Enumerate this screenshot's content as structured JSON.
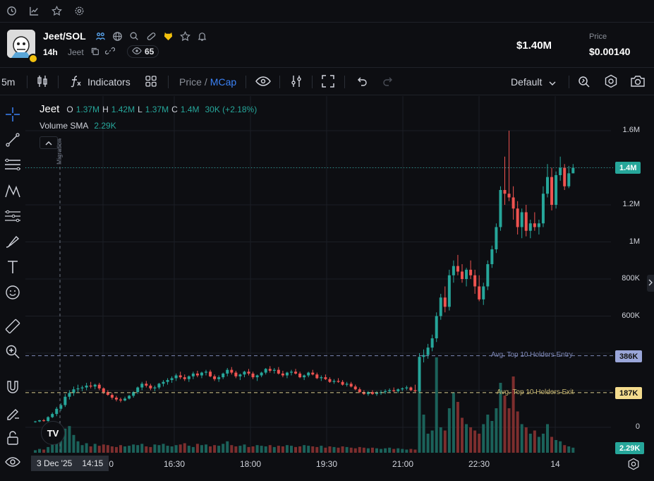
{
  "topnav": {
    "icons": [
      "history-icon",
      "chart-line-icon",
      "star-icon",
      "gear-icon"
    ]
  },
  "header": {
    "pair": "Jeet/SOL",
    "age": "14h",
    "symbol": "Jeet",
    "viewers": "65",
    "market_cap": "$1.40M",
    "price_label": "Price",
    "price_value": "$0.00140"
  },
  "toolbar": {
    "interval": "5m",
    "indicators_label": "Indicators",
    "price_label": "Price",
    "separator": "/",
    "mcap_label": "MCap",
    "layout_label": "Default"
  },
  "legend": {
    "name": "Jeet",
    "open_key": "O",
    "open": "1.37M",
    "high_key": "H",
    "high": "1.42M",
    "low_key": "L",
    "low": "1.37M",
    "close_key": "C",
    "close": "1.4M",
    "change": "30K (+2.18%)",
    "volume_label": "Volume SMA",
    "volume_value": "2.29K",
    "migration_label": "Migration"
  },
  "yaxis": {
    "ticks": [
      {
        "label": "1.6M",
        "value": 1600000
      },
      {
        "label": "1.2M",
        "value": 1200000
      },
      {
        "label": "1M",
        "value": 1000000
      },
      {
        "label": "800K",
        "value": 800000
      },
      {
        "label": "600K",
        "value": 600000
      },
      {
        "label": "0",
        "value": 0
      }
    ],
    "last_price_badge": "1.4M",
    "entry_badge": "386K",
    "exit_badge": "187K",
    "volume_badge": "2.29K"
  },
  "lines": {
    "entry_label": "Avg. Top 10 Holders Entry",
    "exit_label": "Avg. Top 10 Holders Exit"
  },
  "xaxis": {
    "cursor_date": "3 Dec '25",
    "cursor_time": "14:15",
    "ticks": [
      "15:00",
      "16:30",
      "18:00",
      "19:30",
      "21:00",
      "22:30",
      "14"
    ]
  },
  "colors": {
    "up": "#26a69a",
    "down": "#ef5350",
    "entry_line": "#7c86b5",
    "exit_line": "#d6c98a",
    "accent": "#2962ff"
  },
  "chart_data": {
    "type": "candlestick",
    "unit": "market cap (USD)",
    "x_start": "14:00",
    "interval_minutes": 5,
    "candles": [
      [
        30000,
        35000,
        25000,
        32000
      ],
      [
        32000,
        40000,
        28000,
        38000
      ],
      [
        38000,
        45000,
        30000,
        34000
      ],
      [
        34000,
        60000,
        30000,
        55000
      ],
      [
        55000,
        80000,
        50000,
        72000
      ],
      [
        72000,
        110000,
        60000,
        100000
      ],
      [
        100000,
        130000,
        90000,
        120000
      ],
      [
        120000,
        180000,
        110000,
        165000
      ],
      [
        165000,
        200000,
        150000,
        185000
      ],
      [
        185000,
        220000,
        170000,
        205000
      ],
      [
        205000,
        230000,
        190000,
        210000
      ],
      [
        210000,
        225000,
        195000,
        215000
      ],
      [
        215000,
        240000,
        200000,
        225000
      ],
      [
        225000,
        245000,
        210000,
        220000
      ],
      [
        220000,
        235000,
        205000,
        230000
      ],
      [
        230000,
        240000,
        200000,
        210000
      ],
      [
        210000,
        215000,
        180000,
        190000
      ],
      [
        190000,
        200000,
        170000,
        175000
      ],
      [
        175000,
        185000,
        150000,
        160000
      ],
      [
        160000,
        170000,
        140000,
        150000
      ],
      [
        150000,
        160000,
        135000,
        145000
      ],
      [
        145000,
        165000,
        140000,
        155000
      ],
      [
        155000,
        175000,
        150000,
        170000
      ],
      [
        170000,
        195000,
        160000,
        190000
      ],
      [
        190000,
        220000,
        180000,
        215000
      ],
      [
        215000,
        245000,
        200000,
        235000
      ],
      [
        235000,
        250000,
        215000,
        225000
      ],
      [
        225000,
        235000,
        200000,
        210000
      ],
      [
        210000,
        225000,
        195000,
        215000
      ],
      [
        215000,
        240000,
        205000,
        235000
      ],
      [
        235000,
        255000,
        220000,
        245000
      ],
      [
        245000,
        265000,
        230000,
        255000
      ],
      [
        255000,
        275000,
        240000,
        265000
      ],
      [
        265000,
        290000,
        250000,
        280000
      ],
      [
        280000,
        300000,
        260000,
        270000
      ],
      [
        270000,
        285000,
        250000,
        260000
      ],
      [
        260000,
        280000,
        245000,
        275000
      ],
      [
        275000,
        300000,
        260000,
        290000
      ],
      [
        290000,
        305000,
        270000,
        280000
      ],
      [
        280000,
        300000,
        265000,
        295000
      ],
      [
        295000,
        310000,
        280000,
        300000
      ],
      [
        300000,
        310000,
        270000,
        275000
      ],
      [
        275000,
        285000,
        250000,
        260000
      ],
      [
        260000,
        280000,
        245000,
        270000
      ],
      [
        270000,
        295000,
        260000,
        290000
      ],
      [
        290000,
        320000,
        275000,
        310000
      ],
      [
        310000,
        325000,
        285000,
        295000
      ],
      [
        295000,
        305000,
        265000,
        275000
      ],
      [
        275000,
        290000,
        255000,
        285000
      ],
      [
        285000,
        305000,
        270000,
        300000
      ],
      [
        300000,
        315000,
        280000,
        290000
      ],
      [
        290000,
        300000,
        260000,
        270000
      ],
      [
        270000,
        285000,
        250000,
        280000
      ],
      [
        280000,
        300000,
        270000,
        295000
      ],
      [
        295000,
        320000,
        285000,
        315000
      ],
      [
        315000,
        330000,
        295000,
        305000
      ],
      [
        305000,
        320000,
        290000,
        310000
      ],
      [
        310000,
        325000,
        285000,
        290000
      ],
      [
        290000,
        305000,
        270000,
        280000
      ],
      [
        280000,
        300000,
        265000,
        295000
      ],
      [
        295000,
        310000,
        280000,
        300000
      ],
      [
        300000,
        315000,
        285000,
        290000
      ],
      [
        290000,
        300000,
        265000,
        270000
      ],
      [
        270000,
        285000,
        255000,
        280000
      ],
      [
        280000,
        300000,
        270000,
        295000
      ],
      [
        295000,
        310000,
        280000,
        285000
      ],
      [
        285000,
        295000,
        260000,
        265000
      ],
      [
        265000,
        280000,
        250000,
        270000
      ],
      [
        270000,
        285000,
        255000,
        260000
      ],
      [
        260000,
        270000,
        240000,
        245000
      ],
      [
        245000,
        260000,
        235000,
        250000
      ],
      [
        250000,
        265000,
        240000,
        245000
      ],
      [
        245000,
        255000,
        225000,
        230000
      ],
      [
        230000,
        245000,
        220000,
        235000
      ],
      [
        235000,
        245000,
        215000,
        220000
      ],
      [
        220000,
        230000,
        200000,
        205000
      ],
      [
        205000,
        215000,
        185000,
        190000
      ],
      [
        190000,
        200000,
        175000,
        180000
      ],
      [
        180000,
        195000,
        170000,
        190000
      ],
      [
        190000,
        200000,
        175000,
        180000
      ],
      [
        180000,
        195000,
        170000,
        185000
      ],
      [
        185000,
        200000,
        175000,
        190000
      ],
      [
        190000,
        205000,
        180000,
        195000
      ],
      [
        195000,
        210000,
        185000,
        200000
      ],
      [
        200000,
        215000,
        190000,
        195000
      ],
      [
        195000,
        210000,
        185000,
        205000
      ],
      [
        205000,
        215000,
        195000,
        210000
      ],
      [
        210000,
        225000,
        200000,
        215000
      ],
      [
        215000,
        220000,
        195000,
        200000
      ],
      [
        200000,
        230000,
        190000,
        195000
      ],
      [
        195000,
        400000,
        190000,
        380000
      ],
      [
        380000,
        420000,
        350000,
        390000
      ],
      [
        390000,
        450000,
        370000,
        430000
      ],
      [
        430000,
        500000,
        410000,
        480000
      ],
      [
        480000,
        620000,
        460000,
        600000
      ],
      [
        600000,
        720000,
        580000,
        700000
      ],
      [
        700000,
        760000,
        620000,
        650000
      ],
      [
        650000,
        850000,
        630000,
        820000
      ],
      [
        820000,
        900000,
        780000,
        870000
      ],
      [
        870000,
        930000,
        820000,
        840000
      ],
      [
        840000,
        880000,
        780000,
        800000
      ],
      [
        800000,
        860000,
        760000,
        850000
      ],
      [
        850000,
        900000,
        800000,
        820000
      ],
      [
        820000,
        850000,
        720000,
        760000
      ],
      [
        760000,
        820000,
        680000,
        690000
      ],
      [
        690000,
        780000,
        660000,
        760000
      ],
      [
        760000,
        900000,
        740000,
        880000
      ],
      [
        880000,
        980000,
        860000,
        960000
      ],
      [
        960000,
        1100000,
        940000,
        1080000
      ],
      [
        1080000,
        1300000,
        1060000,
        1280000
      ],
      [
        1280000,
        1460000,
        1200000,
        1260000
      ],
      [
        1260000,
        1600000,
        1220000,
        1240000
      ],
      [
        1240000,
        1300000,
        1120000,
        1180000
      ],
      [
        1180000,
        1220000,
        1040000,
        1080000
      ],
      [
        1080000,
        1180000,
        1020000,
        1160000
      ],
      [
        1160000,
        1200000,
        1030000,
        1060000
      ],
      [
        1060000,
        1120000,
        1020000,
        1100000
      ],
      [
        1100000,
        1160000,
        1060000,
        1080000
      ],
      [
        1080000,
        1120000,
        1040000,
        1100000
      ],
      [
        1100000,
        1300000,
        1080000,
        1260000
      ],
      [
        1260000,
        1420000,
        1240000,
        1350000
      ],
      [
        1350000,
        1400000,
        1170000,
        1200000
      ],
      [
        1200000,
        1380000,
        1180000,
        1360000
      ],
      [
        1360000,
        1460000,
        1330000,
        1400000
      ],
      [
        1400000,
        1420000,
        1280000,
        1300000
      ],
      [
        1300000,
        1410000,
        1290000,
        1370000
      ],
      [
        1370000,
        1420000,
        1370000,
        1400000
      ]
    ],
    "volumes": [
      4,
      6,
      5,
      9,
      14,
      22,
      30,
      38,
      42,
      28,
      18,
      12,
      15,
      10,
      14,
      11,
      13,
      12,
      10,
      9,
      12,
      10,
      11,
      13,
      12,
      14,
      10,
      9,
      13,
      12,
      14,
      11,
      10,
      12,
      13,
      15,
      11,
      9,
      14,
      12,
      13,
      10,
      12,
      11,
      14,
      18,
      12,
      10,
      11,
      13,
      9,
      10,
      12,
      11,
      10,
      12,
      9,
      11,
      10,
      12,
      11,
      9,
      10,
      12,
      11,
      10,
      9,
      11,
      8,
      10,
      9,
      8,
      10,
      9,
      8,
      7,
      9,
      8,
      7,
      8,
      7,
      6,
      7,
      8,
      6,
      7,
      6,
      5,
      6,
      5,
      140,
      60,
      30,
      35,
      150,
      40,
      35,
      70,
      95,
      80,
      55,
      45,
      40,
      35,
      30,
      45,
      60,
      50,
      70,
      110,
      90,
      70,
      120,
      65,
      45,
      40,
      30,
      35,
      25,
      30,
      45,
      25,
      20,
      18,
      12,
      10,
      8
    ],
    "price_ticks": [
      1600000,
      1200000,
      1000000,
      800000,
      600000
    ],
    "last_price": 1400000,
    "avg_top10_entry": 386000,
    "avg_top10_exit": 187000,
    "volume_sma": 2290
  }
}
